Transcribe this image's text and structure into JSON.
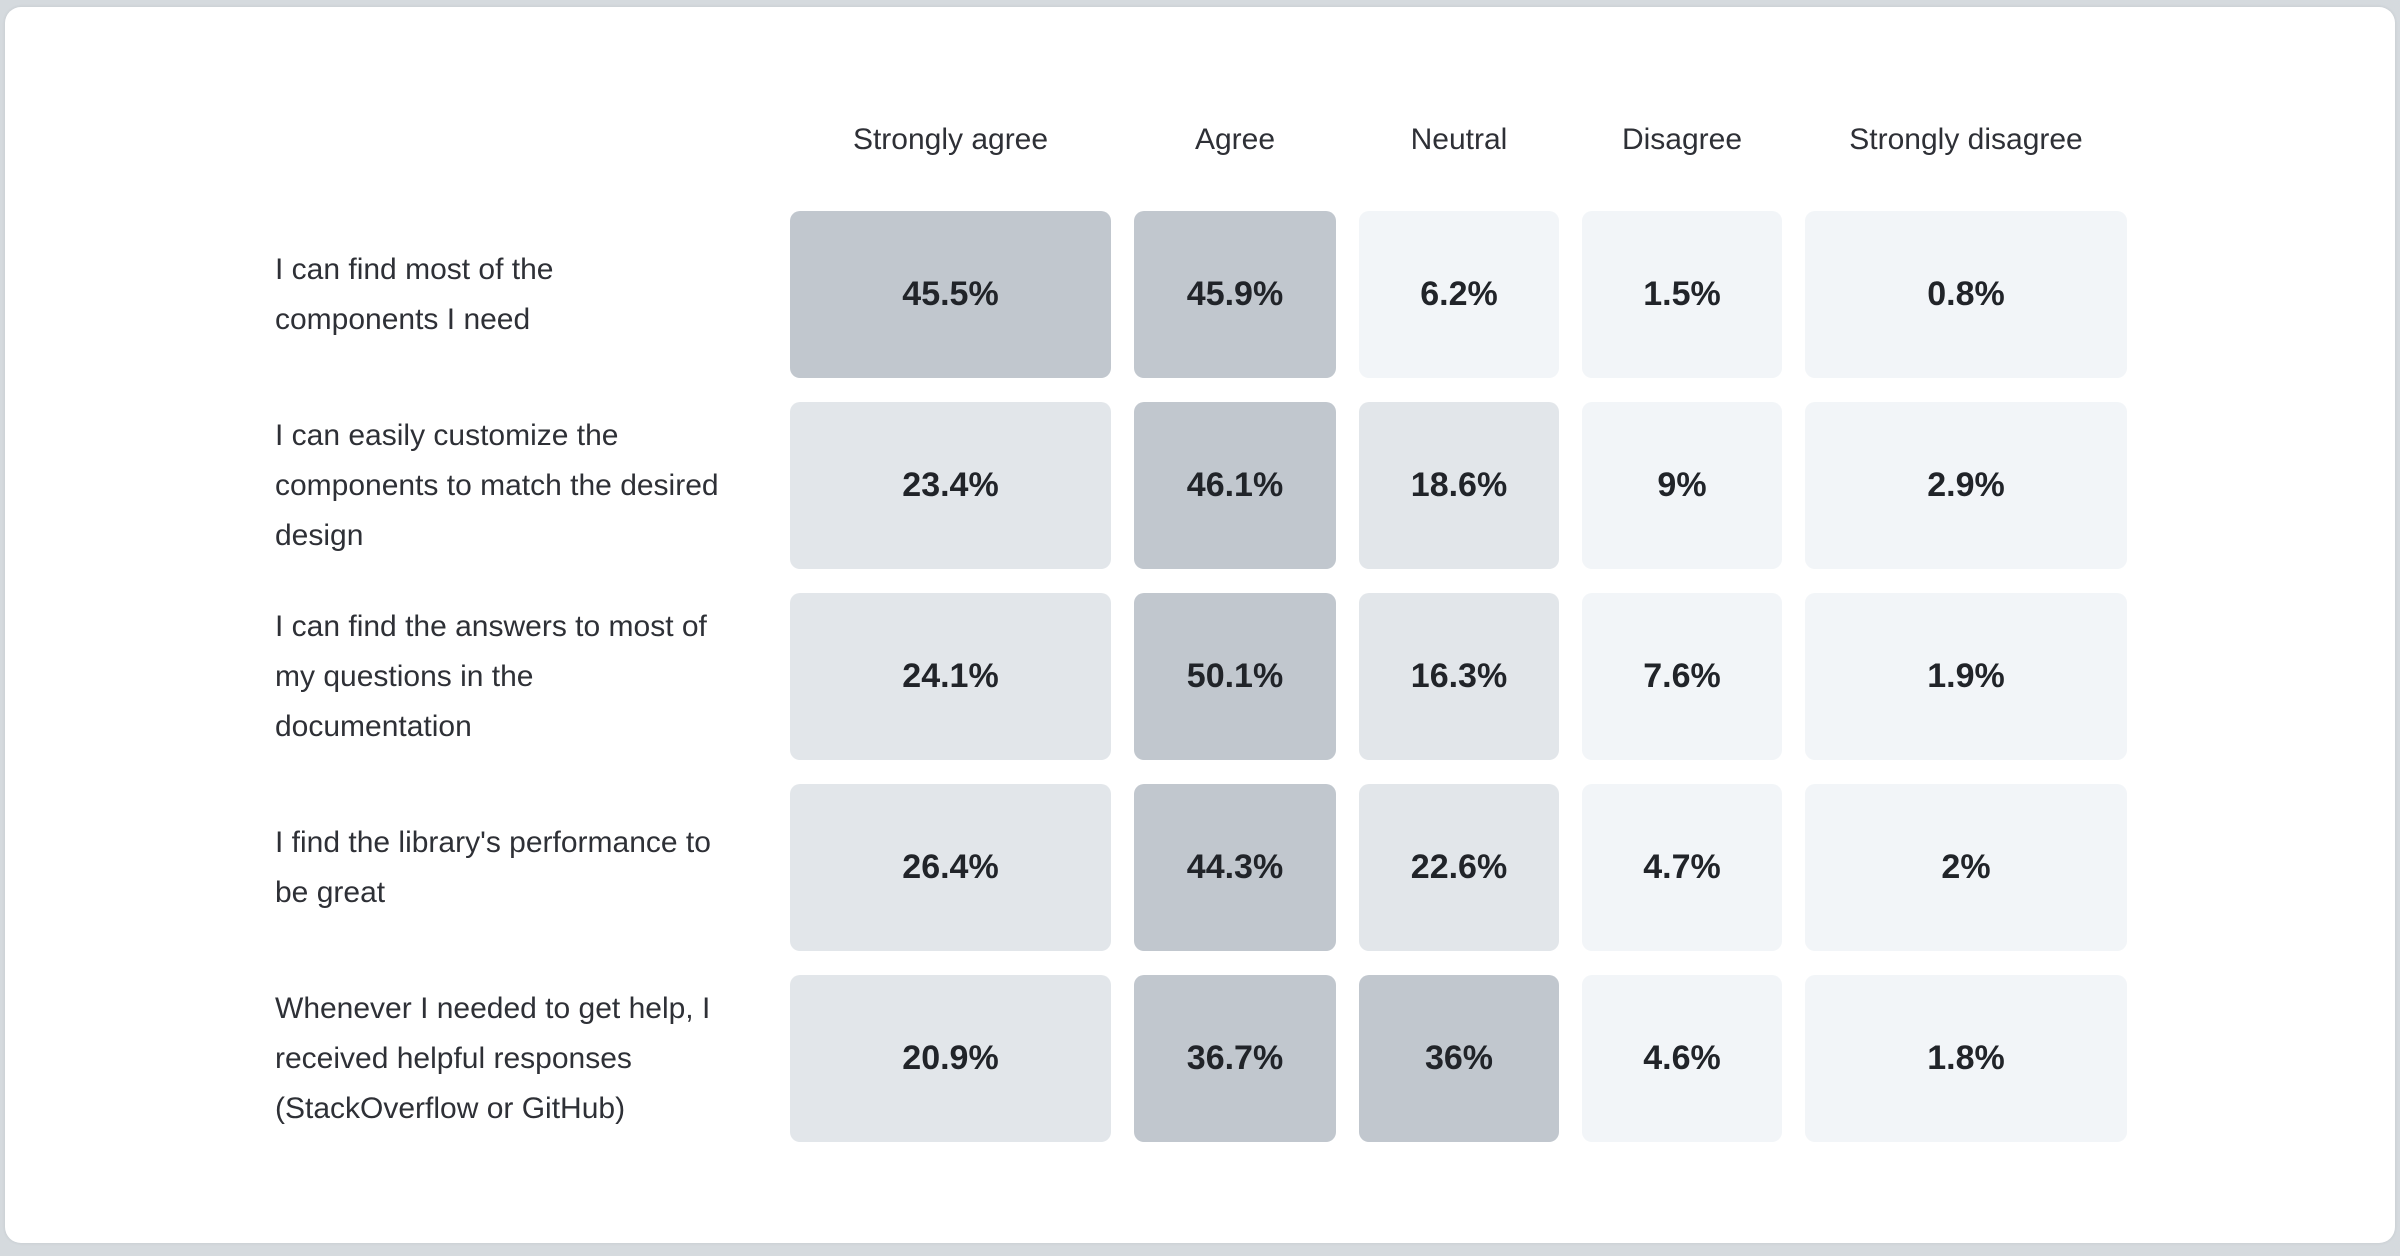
{
  "page": {
    "background_color": "#d5dade",
    "card_background_color": "#ffffff"
  },
  "chart_data": {
    "type": "heatmap",
    "title": "",
    "value_unit": "%",
    "legend_position": "none",
    "grid": false,
    "columns": [
      "Strongly agree",
      "Agree",
      "Neutral",
      "Disagree",
      "Strongly disagree"
    ],
    "rows": [
      {
        "label": "I can find most of the components I need",
        "values": [
          45.5,
          45.9,
          6.2,
          1.5,
          0.8
        ],
        "display": [
          "45.5%",
          "45.9%",
          "6.2%",
          "1.5%",
          "0.8%"
        ]
      },
      {
        "label": "I can easily customize the components to match the desired design",
        "values": [
          23.4,
          46.1,
          18.6,
          9,
          2.9
        ],
        "display": [
          "23.4%",
          "46.1%",
          "18.6%",
          "9%",
          "2.9%"
        ]
      },
      {
        "label": "I can find the answers to most of my questions in the documentation",
        "values": [
          24.1,
          50.1,
          16.3,
          7.6,
          1.9
        ],
        "display": [
          "24.1%",
          "50.1%",
          "16.3%",
          "7.6%",
          "1.9%"
        ]
      },
      {
        "label": "I find the library's performance to be great",
        "values": [
          26.4,
          44.3,
          22.6,
          4.7,
          2
        ],
        "display": [
          "26.4%",
          "44.3%",
          "22.6%",
          "4.7%",
          "2%"
        ]
      },
      {
        "label": "Whenever I needed to get help, I received helpful responses (StackOverflow or GitHub)",
        "values": [
          20.9,
          36.7,
          36,
          4.6,
          1.8
        ],
        "display": [
          "20.9%",
          "36.7%",
          "36%",
          "4.6%",
          "1.8%"
        ]
      }
    ],
    "color_scale": {
      "high_color": "#c1c7ce",
      "mid_color": "#e2e6ea",
      "low_color": "#f2f5f8",
      "high_min_value": 30,
      "mid_min_value": 10
    }
  }
}
